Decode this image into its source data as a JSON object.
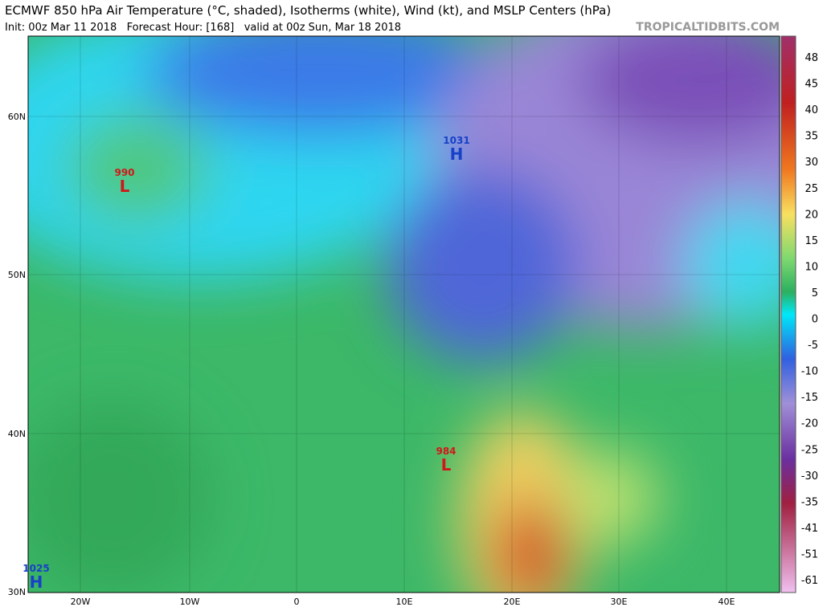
{
  "header": {
    "title": "ECMWF 850 hPa Air Temperature (°C, shaded), Isotherms (white), Wind (kt), and MSLP Centers (hPa)",
    "subtitle": "Init: 00z Mar 11 2018   Forecast Hour: [168]   valid at 00z Sun, Mar 18 2018",
    "site": "TROPICALTIDBITS.COM"
  },
  "map": {
    "lat_labels": [
      "60N",
      "50N",
      "40N",
      "30N"
    ],
    "lon_labels": [
      "20W",
      "10W",
      "0",
      "10E",
      "20E",
      "30E",
      "40E"
    ],
    "centers": [
      {
        "value": "990",
        "kind": "L"
      },
      {
        "value": "1031",
        "kind": "H"
      },
      {
        "value": "984",
        "kind": "L"
      },
      {
        "value": "1025",
        "kind": "H"
      }
    ]
  },
  "colorbar": {
    "ticks": [
      48,
      45,
      40,
      35,
      30,
      25,
      20,
      15,
      10,
      5,
      0,
      -5,
      -10,
      -15,
      -20,
      -25,
      -30,
      -35,
      -41,
      -51,
      -61
    ]
  }
}
